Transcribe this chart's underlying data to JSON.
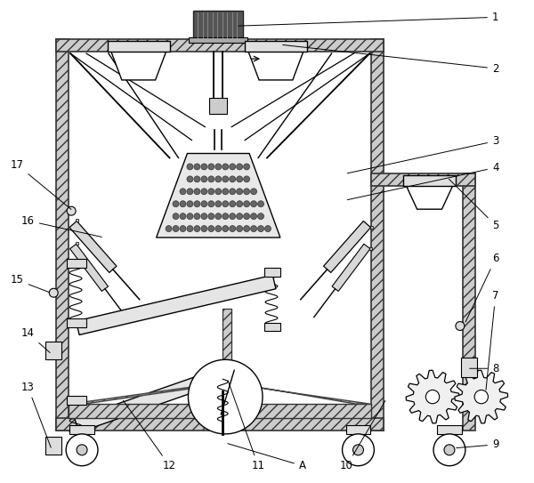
{
  "bg_color": "#ffffff",
  "line_color": "#000000",
  "label_color": "#000000",
  "fig_width": 6.0,
  "fig_height": 5.43,
  "label_fontsize": 8.5
}
